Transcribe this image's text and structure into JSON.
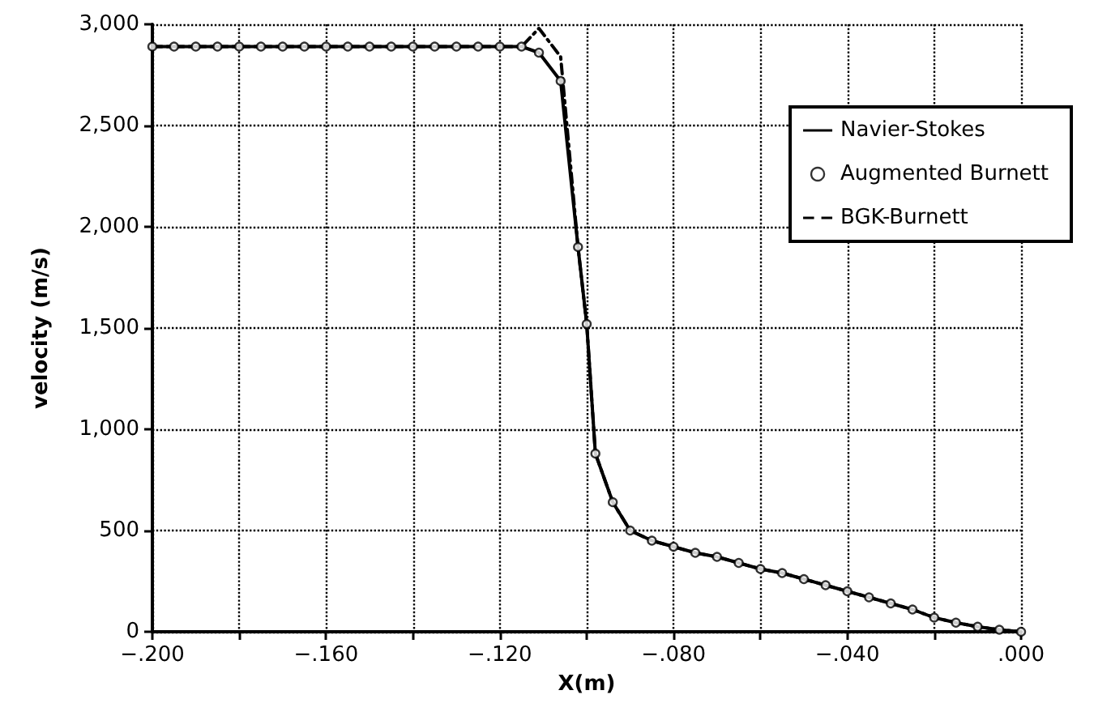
{
  "chart_data": {
    "type": "line",
    "xlabel": "X(m)",
    "ylabel": "velocity (m/s)",
    "x": [
      -0.2,
      -0.195,
      -0.19,
      -0.185,
      -0.18,
      -0.175,
      -0.17,
      -0.165,
      -0.16,
      -0.155,
      -0.15,
      -0.145,
      -0.14,
      -0.135,
      -0.13,
      -0.125,
      -0.12,
      -0.115,
      -0.111,
      -0.106,
      -0.102,
      -0.1,
      -0.098,
      -0.094,
      -0.09,
      -0.085,
      -0.08,
      -0.075,
      -0.07,
      -0.065,
      -0.06,
      -0.055,
      -0.05,
      -0.045,
      -0.04,
      -0.035,
      -0.03,
      -0.025,
      -0.02,
      -0.015,
      -0.01,
      -0.005,
      0
    ],
    "series": [
      {
        "name": "Navier-Stokes",
        "color": "#000000",
        "line_style": "solid",
        "marker": "none",
        "values": [
          2890,
          2890,
          2890,
          2890,
          2890,
          2890,
          2890,
          2890,
          2890,
          2890,
          2890,
          2890,
          2890,
          2890,
          2890,
          2890,
          2890,
          2890,
          2860,
          2720,
          1900,
          1520,
          880,
          640,
          500,
          450,
          420,
          390,
          370,
          340,
          310,
          290,
          260,
          230,
          200,
          170,
          140,
          110,
          70,
          45,
          25,
          10,
          0
        ]
      },
      {
        "name": "Augmented Burnett",
        "type": "scatter",
        "color": "#000000",
        "marker": "circle",
        "values": [
          2890,
          2890,
          2890,
          2890,
          2890,
          2890,
          2890,
          2890,
          2890,
          2890,
          2890,
          2890,
          2890,
          2890,
          2890,
          2890,
          2890,
          2890,
          2860,
          2720,
          1900,
          1520,
          880,
          640,
          500,
          450,
          420,
          390,
          370,
          340,
          310,
          290,
          260,
          230,
          200,
          170,
          140,
          110,
          70,
          45,
          25,
          10,
          0
        ]
      },
      {
        "name": "BGK-Burnett",
        "color": "#000000",
        "line_style": "dashed",
        "marker": "none",
        "values": [
          2890,
          2890,
          2890,
          2890,
          2890,
          2890,
          2890,
          2890,
          2890,
          2890,
          2890,
          2890,
          2890,
          2890,
          2890,
          2890,
          2890,
          2890,
          2980,
          2840,
          1900,
          1520,
          880,
          640,
          500,
          450,
          420,
          390,
          370,
          340,
          310,
          290,
          260,
          230,
          200,
          170,
          140,
          110,
          70,
          45,
          25,
          10,
          0
        ]
      }
    ],
    "xlim": [
      -0.2,
      0
    ],
    "ylim": [
      0,
      3000
    ],
    "xticks": [
      {
        "value": -0.2,
        "label": "−.200"
      },
      {
        "value": -0.18,
        "label": null
      },
      {
        "value": -0.16,
        "label": "−.160"
      },
      {
        "value": -0.14,
        "label": null
      },
      {
        "value": -0.12,
        "label": "−.120"
      },
      {
        "value": -0.1,
        "label": null
      },
      {
        "value": -0.08,
        "label": "−.080"
      },
      {
        "value": -0.06,
        "label": null
      },
      {
        "value": -0.04,
        "label": "−.040"
      },
      {
        "value": -0.02,
        "label": null
      },
      {
        "value": 0,
        "label": ".000"
      }
    ],
    "yticks": [
      0,
      500,
      {
        "value": 1000,
        "label": "1,000"
      },
      {
        "value": 1500,
        "label": "1,500"
      },
      {
        "value": 2000,
        "label": "2,000"
      },
      {
        "value": 2500,
        "label": "2,500"
      },
      {
        "value": 3000,
        "label": "3,000"
      }
    ],
    "grid": true,
    "legend": "right"
  }
}
